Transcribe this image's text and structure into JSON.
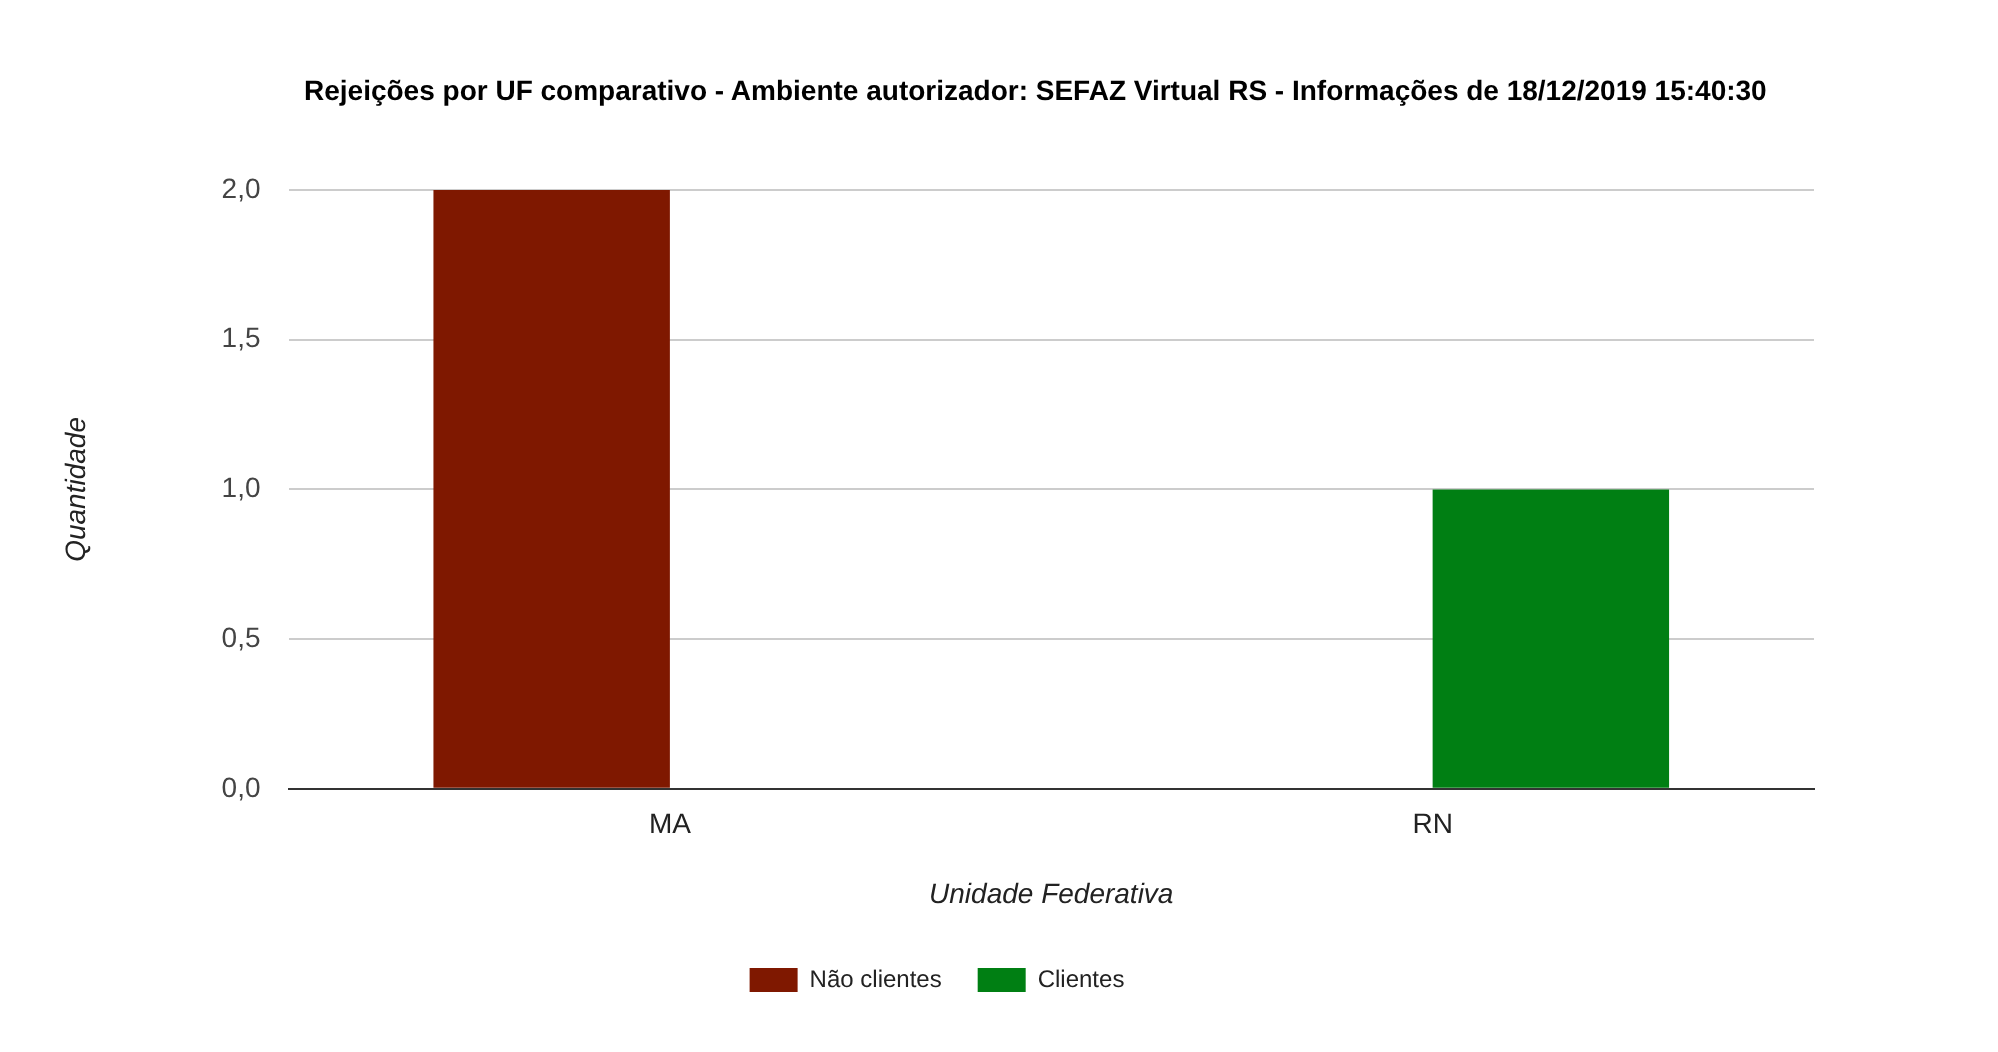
{
  "chart_data": {
    "type": "bar",
    "title": "Rejeições por UF comparativo - Ambiente autorizador: SEFAZ Virtual RS - Informações de 18/12/2019 15:40:30",
    "xlabel": "Unidade Federativa",
    "ylabel": "Quantidade",
    "categories": [
      "MA",
      "RN"
    ],
    "series": [
      {
        "name": "Não clientes",
        "color": "#7f1800",
        "values": [
          2,
          0
        ]
      },
      {
        "name": "Clientes",
        "color": "#007f13",
        "values": [
          0,
          1
        ]
      }
    ],
    "ylim": [
      0,
      2
    ],
    "yticks": [
      {
        "value": 0,
        "label": "0,0"
      },
      {
        "value": 0.5,
        "label": "0,5"
      },
      {
        "value": 1,
        "label": "1,0"
      },
      {
        "value": 1.5,
        "label": "1,5"
      },
      {
        "value": 2,
        "label": "2,0"
      }
    ],
    "grid": "y",
    "legend": "bottom"
  }
}
